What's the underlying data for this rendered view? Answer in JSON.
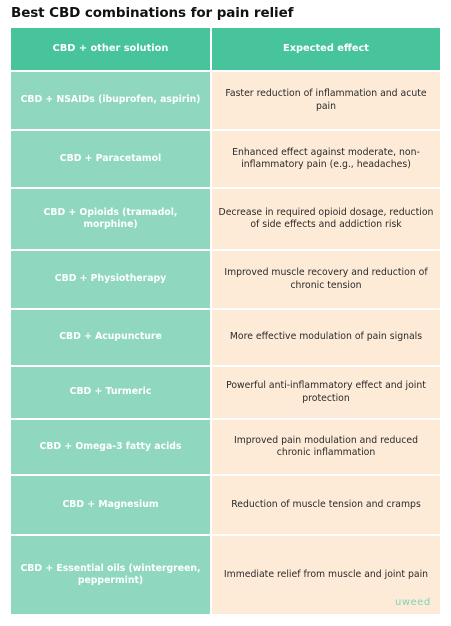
{
  "title": "Best CBD combinations for pain relief",
  "table": {
    "headers": [
      "CBD + other solution",
      "Expected effect"
    ],
    "rows": [
      [
        "CBD + NSAIDs (ibuprofen, aspirin)",
        "Faster reduction of inflammation and acute pain"
      ],
      [
        "CBD + Paracetamol",
        "Enhanced effect against moderate, non-inflammatory pain (e.g., headaches)"
      ],
      [
        "CBD + Opioids (tramadol, morphine)",
        "Decrease in required opioid dosage, reduction of side effects and addiction risk"
      ],
      [
        "CBD + Physiotherapy",
        "Improved muscle recovery and reduction of chronic tension"
      ],
      [
        "CBD + Acupuncture",
        "More effective modulation of pain signals"
      ],
      [
        "CBD + Turmeric",
        "Powerful anti-inflammatory effect and joint protection"
      ],
      [
        "CBD + Omega-3 fatty acids",
        "Improved pain modulation and reduced chronic inflammation"
      ],
      [
        "CBD + Magnesium",
        "Reduction of muscle tension and cramps"
      ],
      [
        "CBD + Essential oils (wintergreen, peppermint)",
        "Immediate relief from muscle and joint pain"
      ]
    ]
  },
  "brand": "uweed",
  "colors": {
    "header": "#48c49d",
    "left_column": "#8fd8bf",
    "right_column": "#fdebd8"
  }
}
